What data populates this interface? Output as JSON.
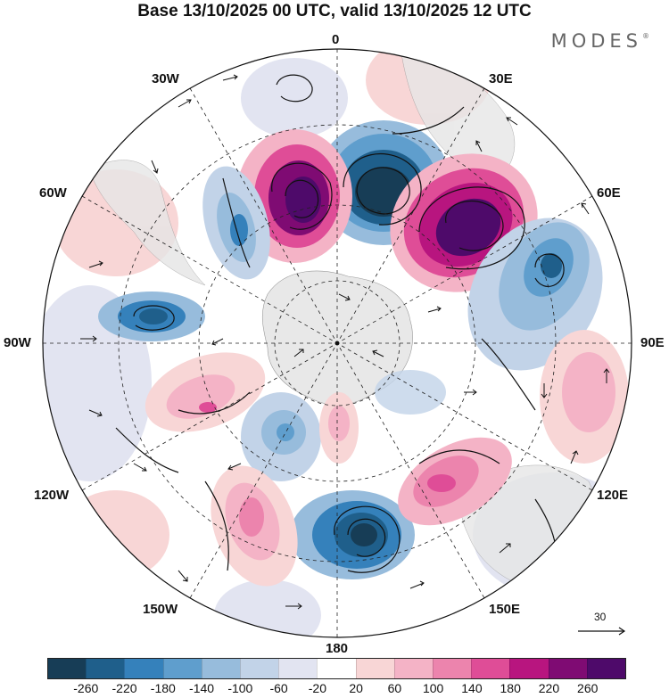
{
  "title": "Base 13/10/2025 00 UTC, valid 13/10/2025 12 UTC",
  "brand": "MODES",
  "brand_mark": "®",
  "longitude_labels": {
    "n0": "0",
    "n30e": "30E",
    "n60e": "60E",
    "n90e": "90E",
    "n120e": "120E",
    "n150e": "150E",
    "n180": "180",
    "n150w": "150W",
    "n120w": "120W",
    "n90w": "90W",
    "n60w": "60W",
    "n30w": "30W"
  },
  "wind_scale_label": "30",
  "colorbar": {
    "ticks": [
      "-260",
      "-220",
      "-180",
      "-140",
      "-100",
      "-60",
      "-20",
      "20",
      "60",
      "100",
      "140",
      "180",
      "220",
      "260"
    ],
    "colors": [
      "#173d56",
      "#1f5f8b",
      "#3581bb",
      "#5f9ecd",
      "#97bcdc",
      "#c2d3e8",
      "#e2e4f1",
      "#ffffff",
      "#f8d6d6",
      "#f4b3c6",
      "#ec84ad",
      "#df4d97",
      "#b8157f",
      "#7f0b73",
      "#4e0a6a"
    ]
  },
  "anomalies": [
    {
      "name": "anomaly-neg-south-atlantic",
      "value": -260
    },
    {
      "name": "anomaly-pos-west-atlantic",
      "value": 240
    },
    {
      "name": "anomaly-pos-south-africa",
      "value": 260
    },
    {
      "name": "anomaly-neg-indian-ocean",
      "value": -160
    },
    {
      "name": "anomaly-neg-south-america-west",
      "value": -140
    },
    {
      "name": "anomaly-neg-pacific-west",
      "value": -180
    },
    {
      "name": "anomaly-pos-bellingshausen",
      "value": 100
    },
    {
      "name": "anomaly-neg-pacific-south",
      "value": -140
    },
    {
      "name": "anomaly-neg-ross-sea",
      "value": -200
    },
    {
      "name": "anomaly-pos-south-pacific",
      "value": 120
    },
    {
      "name": "anomaly-pos-tasman",
      "value": 160
    },
    {
      "name": "anomaly-pos-south-indian",
      "value": 80
    }
  ]
}
